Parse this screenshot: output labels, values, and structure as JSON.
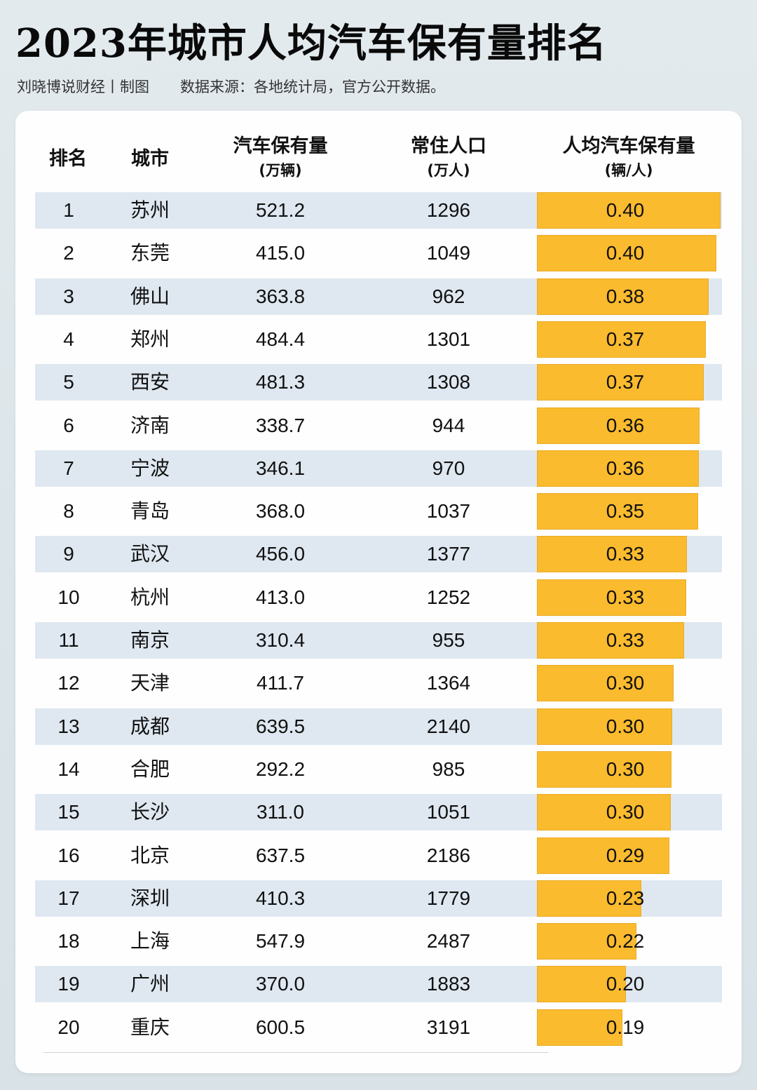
{
  "header": {
    "title": "2023年城市人均汽车保有量排名",
    "author": "刘晓博说财经丨制图",
    "source": "数据来源：各地统计局，官方公开数据。"
  },
  "columns": {
    "rank": {
      "label": "排名"
    },
    "city": {
      "label": "城市"
    },
    "cars": {
      "label": "汽车保有量",
      "unit": "(万辆)"
    },
    "population": {
      "label": "常住人口",
      "unit": "(万人)"
    },
    "per_capita": {
      "label": "人均汽车保有量",
      "unit": "(辆/人)"
    }
  },
  "colors": {
    "bar": "#fbbb2e",
    "row_shade": "#dfe8f1"
  },
  "rows": [
    {
      "rank": "1",
      "city": "苏州",
      "cars": "521.2",
      "population": "1296",
      "per_capita": "0.40"
    },
    {
      "rank": "2",
      "city": "东莞",
      "cars": "415.0",
      "population": "1049",
      "per_capita": "0.40"
    },
    {
      "rank": "3",
      "city": "佛山",
      "cars": "363.8",
      "population": "962",
      "per_capita": "0.38"
    },
    {
      "rank": "4",
      "city": "郑州",
      "cars": "484.4",
      "population": "1301",
      "per_capita": "0.37"
    },
    {
      "rank": "5",
      "city": "西安",
      "cars": "481.3",
      "population": "1308",
      "per_capita": "0.37"
    },
    {
      "rank": "6",
      "city": "济南",
      "cars": "338.7",
      "population": "944",
      "per_capita": "0.36"
    },
    {
      "rank": "7",
      "city": "宁波",
      "cars": "346.1",
      "population": "970",
      "per_capita": "0.36"
    },
    {
      "rank": "8",
      "city": "青岛",
      "cars": "368.0",
      "population": "1037",
      "per_capita": "0.35"
    },
    {
      "rank": "9",
      "city": "武汉",
      "cars": "456.0",
      "population": "1377",
      "per_capita": "0.33"
    },
    {
      "rank": "10",
      "city": "杭州",
      "cars": "413.0",
      "population": "1252",
      "per_capita": "0.33"
    },
    {
      "rank": "11",
      "city": "南京",
      "cars": "310.4",
      "population": "955",
      "per_capita": "0.33"
    },
    {
      "rank": "12",
      "city": "天津",
      "cars": "411.7",
      "population": "1364",
      "per_capita": "0.30"
    },
    {
      "rank": "13",
      "city": "成都",
      "cars": "639.5",
      "population": "2140",
      "per_capita": "0.30"
    },
    {
      "rank": "14",
      "city": "合肥",
      "cars": "292.2",
      "population": "985",
      "per_capita": "0.30"
    },
    {
      "rank": "15",
      "city": "长沙",
      "cars": "311.0",
      "population": "1051",
      "per_capita": "0.30"
    },
    {
      "rank": "16",
      "city": "北京",
      "cars": "637.5",
      "population": "2186",
      "per_capita": "0.29"
    },
    {
      "rank": "17",
      "city": "深圳",
      "cars": "410.3",
      "population": "1779",
      "per_capita": "0.23"
    },
    {
      "rank": "18",
      "city": "上海",
      "cars": "547.9",
      "population": "2487",
      "per_capita": "0.22"
    },
    {
      "rank": "19",
      "city": "广州",
      "cars": "370.0",
      "population": "1883",
      "per_capita": "0.20"
    },
    {
      "rank": "20",
      "city": "重庆",
      "cars": "600.5",
      "population": "3191",
      "per_capita": "0.19"
    }
  ],
  "chart_data": {
    "type": "table",
    "title": "2023年城市人均汽车保有量排名",
    "subtitle": "刘晓博说财经丨制图 数据来源：各地统计局，官方公开数据。",
    "columns": [
      "排名",
      "城市",
      "汽车保有量(万辆)",
      "常住人口(万人)",
      "人均汽车保有量(辆/人)"
    ],
    "categories": [
      "苏州",
      "东莞",
      "佛山",
      "郑州",
      "西安",
      "济南",
      "宁波",
      "青岛",
      "武汉",
      "杭州",
      "南京",
      "天津",
      "成都",
      "合肥",
      "长沙",
      "北京",
      "深圳",
      "上海",
      "广州",
      "重庆"
    ],
    "series": [
      {
        "name": "汽车保有量(万辆)",
        "values": [
          521.2,
          415.0,
          363.8,
          484.4,
          481.3,
          338.7,
          346.1,
          368.0,
          456.0,
          413.0,
          310.4,
          411.7,
          639.5,
          292.2,
          311.0,
          637.5,
          410.3,
          547.9,
          370.0,
          600.5
        ]
      },
      {
        "name": "常住人口(万人)",
        "values": [
          1296,
          1049,
          962,
          1301,
          1308,
          944,
          970,
          1037,
          1377,
          1252,
          955,
          1364,
          2140,
          985,
          1051,
          2186,
          1779,
          2487,
          1883,
          3191
        ]
      },
      {
        "name": "人均汽车保有量(辆/人)",
        "values": [
          0.4,
          0.4,
          0.38,
          0.37,
          0.37,
          0.36,
          0.36,
          0.35,
          0.33,
          0.33,
          0.33,
          0.3,
          0.3,
          0.3,
          0.3,
          0.29,
          0.23,
          0.22,
          0.2,
          0.19
        ],
        "display": "horizontal data bars"
      }
    ]
  }
}
